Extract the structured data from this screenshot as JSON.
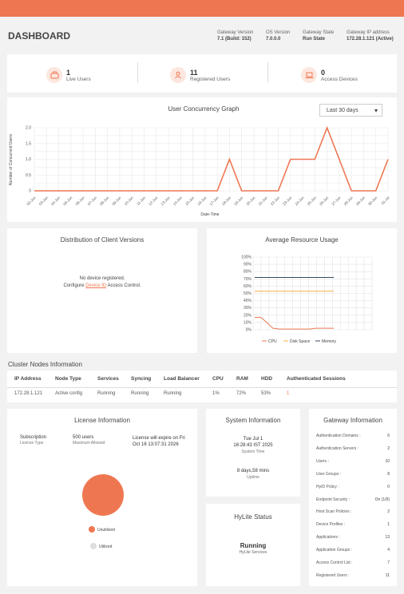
{
  "header": {
    "title": "DASHBOARD",
    "info": [
      {
        "label": "Gateway Version",
        "value": "7.1 (Build: 152)"
      },
      {
        "label": "OS Version",
        "value": "7.0.0.0"
      },
      {
        "label": "Gateway State",
        "value": "Run State"
      },
      {
        "label": "Gateway IP address",
        "value": "172.28.1.121 (Active)"
      }
    ]
  },
  "stats": [
    {
      "count": "1",
      "label": "Live Users"
    },
    {
      "count": "11",
      "label": "Registered Users"
    },
    {
      "count": "0",
      "label": "Access Devices"
    }
  ],
  "concurrency": {
    "title": "User Concurrency Graph",
    "range": "Last 30 days",
    "ylabel": "Number of Concurrent Users",
    "xlabel": "Date-Time",
    "yticks": [
      "0",
      "0.5",
      "1.0",
      "1.5",
      "2.0"
    ]
  },
  "chart_data": [
    {
      "type": "line",
      "title": "User Concurrency Graph",
      "xlabel": "Date-Time",
      "ylabel": "Number of Concurrent Users",
      "ylim": [
        0,
        2
      ],
      "categories": [
        "02-Jun",
        "03-Jun",
        "04-Jun",
        "05-Jun",
        "06-Jun",
        "07-Jun",
        "08-Jun",
        "09-Jun",
        "10-Jun",
        "11-Jun",
        "12-Jun",
        "13-Jun",
        "14-Jun",
        "15-Jun",
        "16-Jun",
        "17-Jun",
        "18-Jun",
        "19-Jun",
        "20-Jun",
        "21-Jun",
        "22-Jun",
        "23-Jun",
        "24-Jun",
        "25-Jun",
        "26-Jun",
        "27-Jun",
        "28-Jun",
        "29-Jun",
        "30-Jun",
        "01-Jul"
      ],
      "values": [
        0,
        0,
        0,
        0,
        0,
        0,
        0,
        0,
        0,
        0,
        0,
        0,
        0,
        0,
        0,
        0,
        1,
        0,
        0,
        0,
        0,
        1,
        1,
        1,
        2,
        1,
        0,
        0,
        0,
        1
      ],
      "color": "#ee7752"
    },
    {
      "type": "line",
      "title": "Average Resource Usage",
      "ylim": [
        0,
        100
      ],
      "yticks": [
        "0%",
        "10%",
        "20%",
        "30%",
        "40%",
        "50%",
        "60%",
        "70%",
        "80%",
        "90%",
        "100%"
      ],
      "series": [
        {
          "name": "CPU",
          "color": "#ee7752",
          "values": [
            17,
            17,
            10,
            2,
            1,
            1,
            1,
            1,
            1,
            1,
            2,
            2,
            2,
            2
          ]
        },
        {
          "name": "Disk Space",
          "color": "#f5b041",
          "values": [
            53,
            53,
            53,
            53,
            53,
            53,
            53,
            53,
            53,
            53,
            53,
            53,
            53,
            53
          ]
        },
        {
          "name": "Memory",
          "color": "#34495e",
          "values": [
            72,
            72,
            72,
            72,
            72,
            72,
            72,
            72,
            72,
            72,
            72,
            72,
            72,
            72
          ]
        }
      ]
    },
    {
      "type": "pie",
      "title": "License Information",
      "series": [
        {
          "name": "Unutilized",
          "color": "#ee7752",
          "values": [
            500
          ]
        },
        {
          "name": "Utilized",
          "color": "#dddddd",
          "values": [
            0
          ]
        }
      ]
    }
  ],
  "client_versions": {
    "title": "Distribution of Client Versions",
    "msg": "No device registered.",
    "configure": "Configure",
    "link": "Device ID",
    "after": "Access Control."
  },
  "resource": {
    "title": "Average Resource Usage"
  },
  "cluster": {
    "title": "Cluster Nodes Information",
    "columns": [
      "IP Address",
      "Node Type",
      "Services",
      "Syncing",
      "Load Balancer",
      "CPU",
      "RAM",
      "HDD",
      "Authenticated Sessions"
    ],
    "row": [
      "172.28.1.121",
      "Active config",
      "Running",
      "Running",
      "Running",
      "1%",
      "72%",
      "53%",
      "1"
    ]
  },
  "license": {
    "title": "License Information",
    "subscription_label": "Subscription",
    "subscription_sub": "License Type",
    "users_value": "500 users",
    "users_sub": "Maximum Allowed",
    "expire": "License will expire on Fri Oct 16 13:07:31 2026"
  },
  "system": {
    "title": "System Information",
    "date": "Tue Jul 1",
    "time": "16:28:43 IST 2025",
    "time_label": "System Time",
    "uptime": "8 days,58 mins",
    "uptime_label": "Uptime"
  },
  "hylite": {
    "title": "HyLite Status",
    "status": "Running",
    "label": "HyLite Services"
  },
  "gateway": {
    "title": "Gateway Information",
    "rows": [
      {
        "label": "Authentication Domains :",
        "value": "6"
      },
      {
        "label": "Authentication Servers :",
        "value": "2"
      },
      {
        "label": "Users :",
        "value": "10"
      },
      {
        "label": "User Groups :",
        "value": "8"
      },
      {
        "label": "HyID Policy :",
        "value": "0"
      },
      {
        "label": "Endpoint Security :",
        "value": "On (1/9)"
      },
      {
        "label": "Host Scan Policies :",
        "value": "2"
      },
      {
        "label": "Device Profiles :",
        "value": "1"
      },
      {
        "label": "Applications :",
        "value": "13"
      },
      {
        "label": "Application Groups :",
        "value": "4"
      },
      {
        "label": "Access Control List :",
        "value": "7"
      },
      {
        "label": "Registered Users :",
        "value": "11"
      }
    ]
  }
}
